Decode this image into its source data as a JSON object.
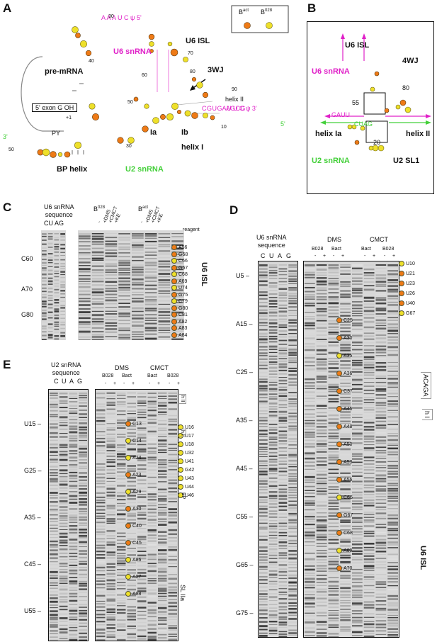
{
  "panels": {
    "A": {
      "label": "A",
      "legend": {
        "bact": "B",
        "bact_sup": "act",
        "b028": "B",
        "b028_sup": "028"
      },
      "titles": {
        "u6": "U6 snRNA",
        "u6isl": "U6 ISL",
        "premrna": "pre-mRNA",
        "u2": "U2 snRNA",
        "bp_helix": "BP helix",
        "helix_i": "helix I",
        "helix_ii": "helix II",
        "three_wj": "3WJ",
        "ia": "Ia",
        "ib": "Ib"
      },
      "exon": "5' exon  G OH",
      "py": "PY",
      "u6_top_seq": "A A A U C ψ 5'",
      "u6_3p": "U U C ψ 3'",
      "u6_mid_seq": "C G U G A A G C G",
      "u2_5p": "5'",
      "u2_left": "3'",
      "numbers": [
        "30",
        "40",
        "50",
        "60",
        "70",
        "80",
        "90",
        "10",
        "30",
        "50",
        "+1"
      ]
    },
    "B": {
      "label": "B",
      "u6isl": "U6 ISL",
      "u6": "U6 snRNA",
      "four_wj": "4WJ",
      "helix_ia": "helix Ia",
      "helix_ii": "helix II",
      "u2": "U2 snRNA",
      "u2sl1": "U2 SL1",
      "n55": "55",
      "n80": "80",
      "n20": "20",
      "gauu": "GAUU",
      "cuag": "CUAG"
    },
    "C": {
      "label": "C",
      "seq_header": "U6 snRNA\nsequence",
      "seq_lanes": "CU AG",
      "groups": [
        "B",
        "B"
      ],
      "group_sups": [
        "028",
        "act"
      ],
      "reagents": [
        "-",
        "+DMS",
        "+CMCT",
        "+KE",
        "-",
        "+DMS",
        "+CMCT",
        "+KE"
      ],
      "reagent_label": "reagent",
      "markers": [
        "C60",
        "A70",
        "G80"
      ],
      "sites": [
        "A56",
        "G58",
        "C66",
        "G67",
        "C68",
        "A69",
        "U74",
        "G75",
        "C79",
        "G80",
        "C81",
        "A82",
        "A83",
        "A84"
      ],
      "region": "U6 ISL"
    },
    "D": {
      "label": "D",
      "seq_header": "U6 snRNA\nsequence",
      "seq_lanes": [
        "C",
        "U",
        "A",
        "G"
      ],
      "dms": "DMS",
      "cmct": "CMCT",
      "sub": [
        "B028",
        "Bact",
        "Bact",
        "B028"
      ],
      "pm": [
        "-",
        "+",
        "-",
        "+",
        "-",
        "+",
        "-",
        "+"
      ],
      "markers": [
        "U5",
        "A15",
        "C25",
        "A35",
        "A45",
        "C55",
        "G65",
        "G75"
      ],
      "dms_sites": [
        "C25",
        "A30",
        "A35",
        "A36",
        "C37",
        "A45",
        "A48",
        "A50",
        "A53",
        "A56",
        "C66",
        "G67",
        "C68",
        "A69",
        "A70"
      ],
      "cmct_sites": [
        "U10",
        "U21",
        "U23",
        "U26",
        "U40",
        "G67"
      ],
      "regions": [
        "ACAGA",
        "h I",
        "U6 ISL"
      ]
    },
    "E": {
      "label": "E",
      "seq_header": "U2 snRNA\nsequence",
      "seq_lanes": [
        "C",
        "U",
        "A",
        "G"
      ],
      "dms": "DMS",
      "cmct": "CMCT",
      "sub": [
        "B028",
        "Bact",
        "Bact",
        "B028"
      ],
      "pm": [
        "-",
        "+",
        "-",
        "+",
        "-",
        "+",
        "-",
        "+"
      ],
      "markers": [
        "U15",
        "G25",
        "A35",
        "C45",
        "U55"
      ],
      "dms_sites": [
        "C13",
        "C14",
        "A24",
        "A23",
        "A29",
        "A30",
        "C40",
        "C45",
        "A86",
        "A87",
        "A88"
      ],
      "cmct_sites": [
        "U16",
        "U17",
        "U18",
        "U32",
        "U41",
        "G42",
        "U43",
        "U44",
        "U46"
      ],
      "regions": [
        "h II",
        "h I",
        "BP",
        "SL IIa"
      ]
    }
  },
  "colors": {
    "magenta": "#e020c8",
    "green": "#44d03a",
    "orange": "#ee7a16",
    "yellow": "#eee02a"
  }
}
